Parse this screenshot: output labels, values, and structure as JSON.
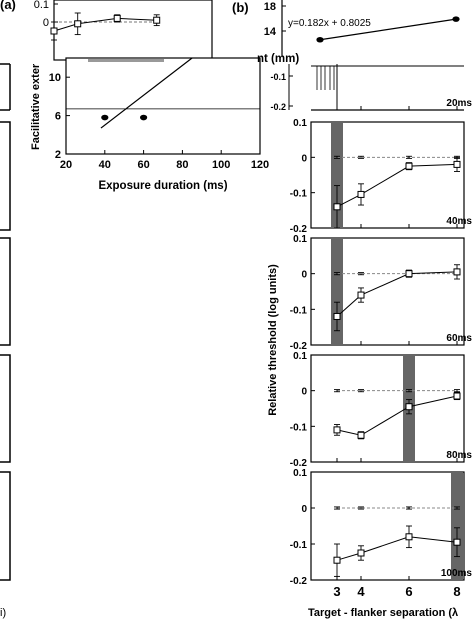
{
  "panel_labels": {
    "a": "(a)",
    "b": "(b)"
  },
  "chart_data": [
    {
      "id": "a-inset",
      "type": "line",
      "x": [
        20,
        35,
        60,
        85
      ],
      "xlim": [
        20,
        120
      ],
      "ylim": [
        -0.2,
        0.1
      ],
      "yticks": [
        0.1,
        0
      ],
      "series": [
        {
          "values": [
            -0.05,
            -0.01,
            0.02,
            0.01
          ],
          "err": [
            0.05,
            0.06,
            0.02,
            0.03
          ]
        },
        {
          "values": [
            0,
            0,
            0,
            0
          ],
          "err": [
            0.005,
            0.005,
            0.005,
            0.005
          ]
        }
      ]
    },
    {
      "id": "a-main",
      "type": "scatter",
      "xlabel": "Exposure duration (ms)",
      "ylabel": "Facilitative exter",
      "xlim": [
        20,
        120
      ],
      "ylim": [
        2,
        12
      ],
      "xticks": [
        20,
        40,
        60,
        80,
        100,
        120
      ],
      "yticks": [
        2,
        6,
        10
      ],
      "points": [
        {
          "x": 40,
          "y": 5.8
        },
        {
          "x": 60,
          "y": 5.8
        }
      ],
      "fit_line": [
        {
          "x": 38,
          "y": 4.7
        },
        {
          "x": 85,
          "y": 12
        }
      ],
      "hline_y": 6.7
    },
    {
      "id": "b-inset",
      "type": "scatter",
      "ylabel": "nt (mm)",
      "equation": "y=0.182x + 0.8025",
      "ylim": [
        10,
        18
      ],
      "yticks": [
        18,
        14
      ],
      "points": [
        {
          "x": 40,
          "y": 12.6
        },
        {
          "x": 80,
          "y": 15.9
        }
      ]
    },
    {
      "id": "b-panels",
      "type": "line",
      "xlabel": "Target - flanker separation (λ",
      "ylabel": "Relative threshold (log units)",
      "x": [
        3,
        4,
        6,
        8
      ],
      "xticks": [
        3,
        4,
        6,
        8
      ],
      "ylim": [
        -0.2,
        0.1
      ],
      "yticks": [
        0.1,
        0,
        -0.1,
        -0.2
      ],
      "panels": [
        {
          "label": "20ms",
          "yticks": [
            -0.1,
            -0.2
          ]
        },
        {
          "label": "40ms",
          "bar_x": 3,
          "values": [
            -0.14,
            -0.105,
            -0.025,
            -0.02
          ],
          "err": [
            0.06,
            0.03,
            0.01,
            0.02
          ],
          "control": [
            0,
            0,
            0,
            0
          ]
        },
        {
          "label": "60ms",
          "bar_x": 3,
          "values": [
            -0.12,
            -0.06,
            0,
            0.005
          ],
          "err": [
            0.04,
            0.02,
            0.01,
            0.02
          ],
          "control": [
            0,
            0,
            0,
            0
          ]
        },
        {
          "label": "80ms",
          "bar_x": 6,
          "values": [
            -0.11,
            -0.125,
            -0.045,
            -0.015
          ],
          "err": [
            0.015,
            0.01,
            0.02,
            0.01
          ],
          "control": [
            0,
            0,
            0,
            0
          ]
        },
        {
          "label": "100ms",
          "bar_x": 8,
          "values": [
            -0.145,
            -0.125,
            -0.08,
            -0.095
          ],
          "err": [
            0.045,
            0.02,
            0.03,
            0.04
          ],
          "control": [
            0,
            0,
            0,
            0
          ]
        }
      ]
    }
  ],
  "left_tail": "i)"
}
